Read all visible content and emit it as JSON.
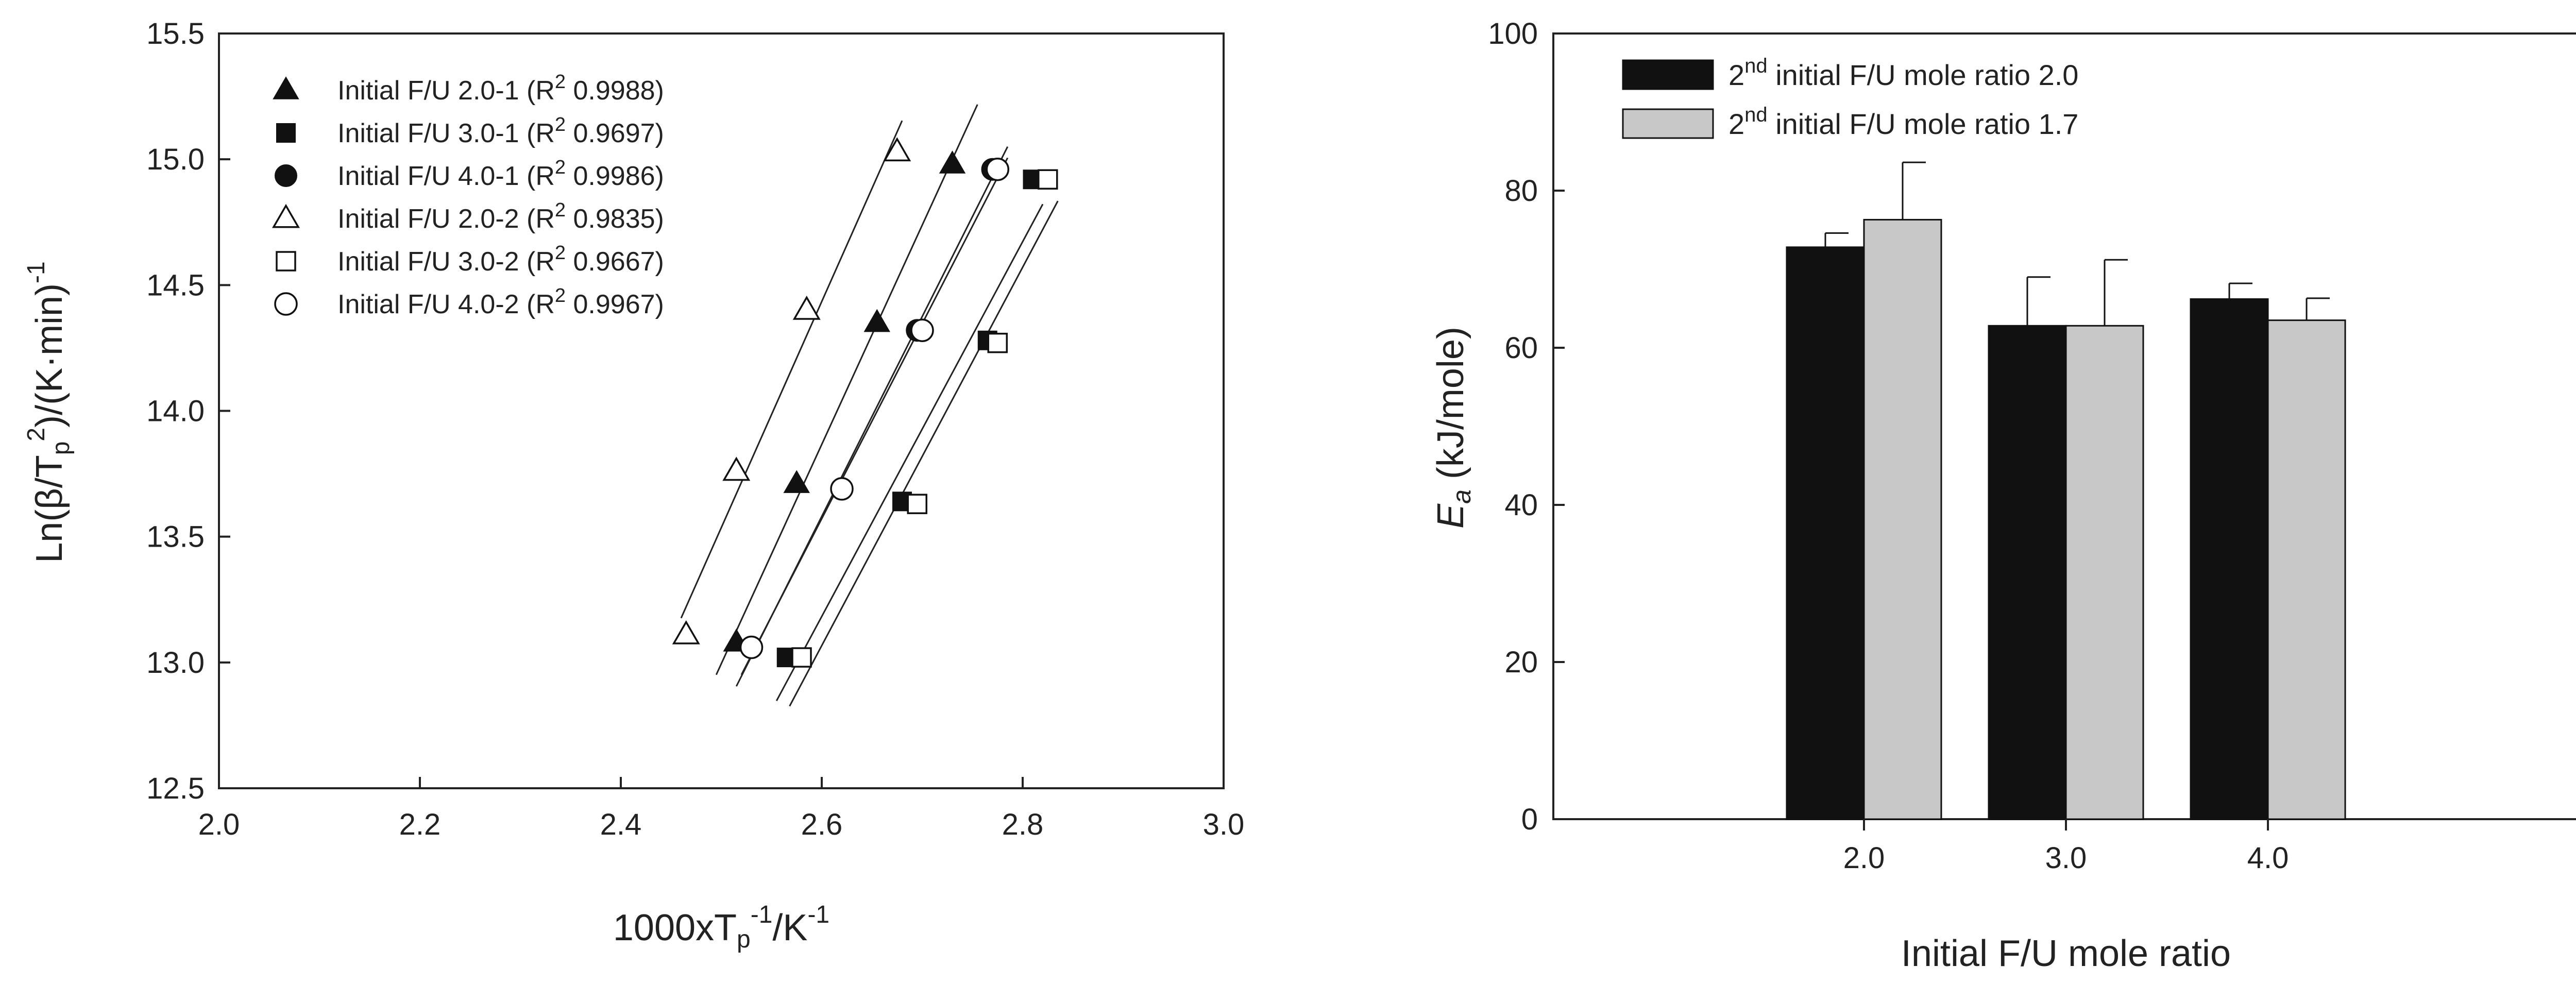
{
  "chart_data": [
    {
      "type": "scatter",
      "xlabel": "1000xT",
      "xlabel_sub": "p",
      "xlabel_sup": "-1",
      "xlabel_tail": "/K",
      "xlabel_tail_sup": "-1",
      "ylabel_lead": "Ln(β/T",
      "ylabel_sub": "p",
      "ylabel_sup": "2",
      "ylabel_tail": ")/(K·min)",
      "ylabel_tail_sup": "-1",
      "xlim": [
        2.0,
        3.0
      ],
      "ylim": [
        12.5,
        15.5
      ],
      "xticks": [
        "2.0",
        "2.2",
        "2.4",
        "2.6",
        "2.8",
        "3.0"
      ],
      "yticks": [
        "12.5",
        "13.0",
        "13.5",
        "14.0",
        "14.5",
        "15.0",
        "15.5"
      ],
      "grid": false,
      "legend_position": "top-left",
      "series": [
        {
          "name": "Initial F/U 2.0-1",
          "r2_prefix": "(R",
          "r2_sup": "2",
          "r2_value": " 0.9988)",
          "marker": "triangle-filled",
          "x": [
            2.515,
            2.575,
            2.655,
            2.73
          ],
          "y": [
            13.08,
            13.71,
            14.35,
            14.98
          ],
          "fit_x": [
            2.495,
            2.755
          ]
        },
        {
          "name": "Initial F/U 3.0-1",
          "r2_prefix": "(R",
          "r2_sup": "2",
          "r2_value": " 0.9697)",
          "marker": "square-filled",
          "x": [
            2.565,
            2.68,
            2.765,
            2.81
          ],
          "y": [
            13.02,
            13.64,
            14.28,
            14.92
          ],
          "fit_x": [
            2.555,
            2.82
          ]
        },
        {
          "name": "Initial F/U 4.0-1",
          "r2_prefix": "(R",
          "r2_sup": "2",
          "r2_value": " 0.9986)",
          "marker": "circle-filled",
          "x": [
            2.53,
            2.62,
            2.695,
            2.77
          ],
          "y": [
            13.06,
            13.69,
            14.32,
            14.96
          ],
          "fit_x": [
            2.515,
            2.785
          ]
        },
        {
          "name": "Initial F/U 2.0-2",
          "r2_prefix": "(R",
          "r2_sup": "2",
          "r2_value": " 0.9835)",
          "marker": "triangle-open",
          "x": [
            2.465,
            2.515,
            2.585,
            2.675
          ],
          "y": [
            13.11,
            13.76,
            14.4,
            15.03
          ],
          "fit_x": [
            2.46,
            2.68
          ]
        },
        {
          "name": "Initial F/U 3.0-2",
          "r2_prefix": "(R",
          "r2_sup": "2",
          "r2_value": " 0.9667)",
          "marker": "square-open",
          "x": [
            2.58,
            2.695,
            2.775,
            2.825
          ],
          "y": [
            13.02,
            13.63,
            14.27,
            14.92
          ],
          "fit_x": [
            2.568,
            2.835
          ]
        },
        {
          "name": "Initial F/U 4.0-2",
          "r2_prefix": "(R",
          "r2_sup": "2",
          "r2_value": " 0.9967)",
          "marker": "circle-open",
          "x": [
            2.53,
            2.62,
            2.7,
            2.775
          ],
          "y": [
            13.06,
            13.69,
            14.32,
            14.96
          ],
          "fit_x": [
            2.52,
            2.785
          ]
        }
      ]
    },
    {
      "type": "bar",
      "xlabel": "Initial F/U mole ratio",
      "ylabel_main": "E",
      "ylabel_sub": "a",
      "ylabel_tail": " (kJ/mole)",
      "categories": [
        "2.0",
        "3.0",
        "4.0"
      ],
      "ylim": [
        0,
        100
      ],
      "yticks": [
        "0",
        "20",
        "40",
        "60",
        "80",
        "100"
      ],
      "grid": false,
      "legend_position": "top-left",
      "series": [
        {
          "name_lead": "2",
          "name_sup": "nd",
          "name_tail": " initial F/U mole ratio 2.0",
          "color": "#111111",
          "values": [
            72.8,
            62.8,
            66.2
          ],
          "errors": [
            1.8,
            6.2,
            2.0
          ]
        },
        {
          "name_lead": "2",
          "name_sup": "nd",
          "name_tail": " initial F/U mole ratio 1.7",
          "color": "#c8c8c8",
          "values": [
            76.3,
            62.8,
            63.5
          ],
          "errors": [
            7.3,
            8.4,
            2.8
          ]
        }
      ]
    }
  ]
}
